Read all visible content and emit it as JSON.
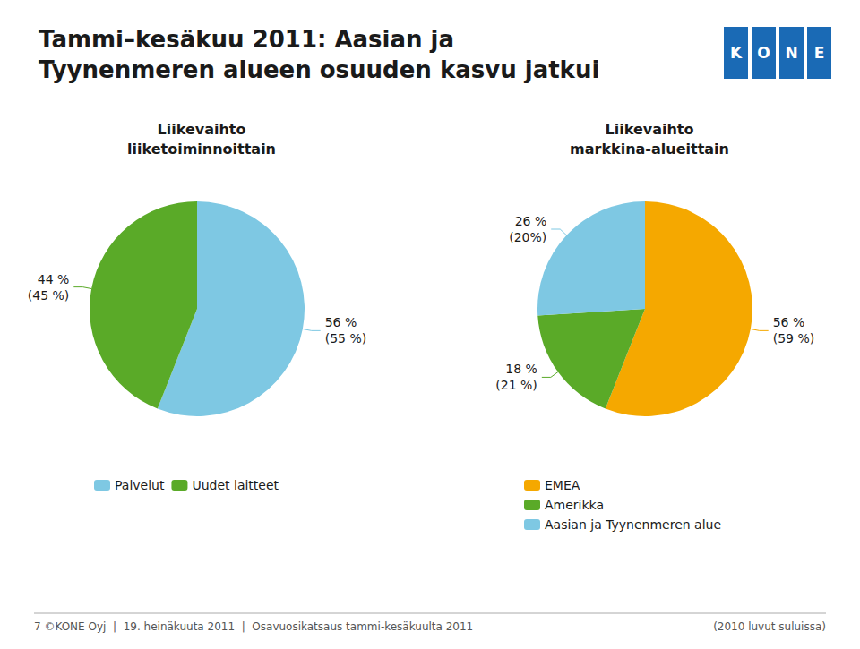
{
  "title": "Tammi–kesäkuu 2011: Aasian ja\nTyynenmeren alueen osuuden kasvu jatkui",
  "annotations": [
    {
      "text": "KONE",
      "color": "#1a6ab5"
    },
    {
      "text": "7 ©KONE Oyj  |  19. heinäkuuta 2011  |  Osavuosikatsaus tammi-kesäkuulta 2011"
    },
    {
      "text": "(2010 luvut suluissa)"
    }
  ],
  "chart_data": [
    {
      "type": "pie",
      "title": "Liikevaihto\nliiketoiminnoittain",
      "categories": [
        "Palvelut",
        "Uudet laitteet"
      ],
      "values": [
        56,
        44
      ],
      "colors": [
        "#7ec8e3",
        "#5aaa28"
      ],
      "data_labels": true,
      "value_labels": [
        "56 %\n(55 %)",
        "44 %\n(45 %)"
      ],
      "legend": "bottom"
    },
    {
      "type": "pie",
      "title": "Liikevaihto\nmarkkina-alueittain",
      "categories": [
        "EMEA",
        "Amerikka",
        "Aasian ja Tyynenmeren alue"
      ],
      "values": [
        56,
        18,
        26
      ],
      "colors": [
        "#f5a800",
        "#5aaa28",
        "#7ec8e3"
      ],
      "data_labels": true,
      "value_labels": [
        "56 %\n(59 %)",
        "18 %\n(21 %)",
        "26 %\n(20%)"
      ],
      "legend": "bottom"
    }
  ]
}
